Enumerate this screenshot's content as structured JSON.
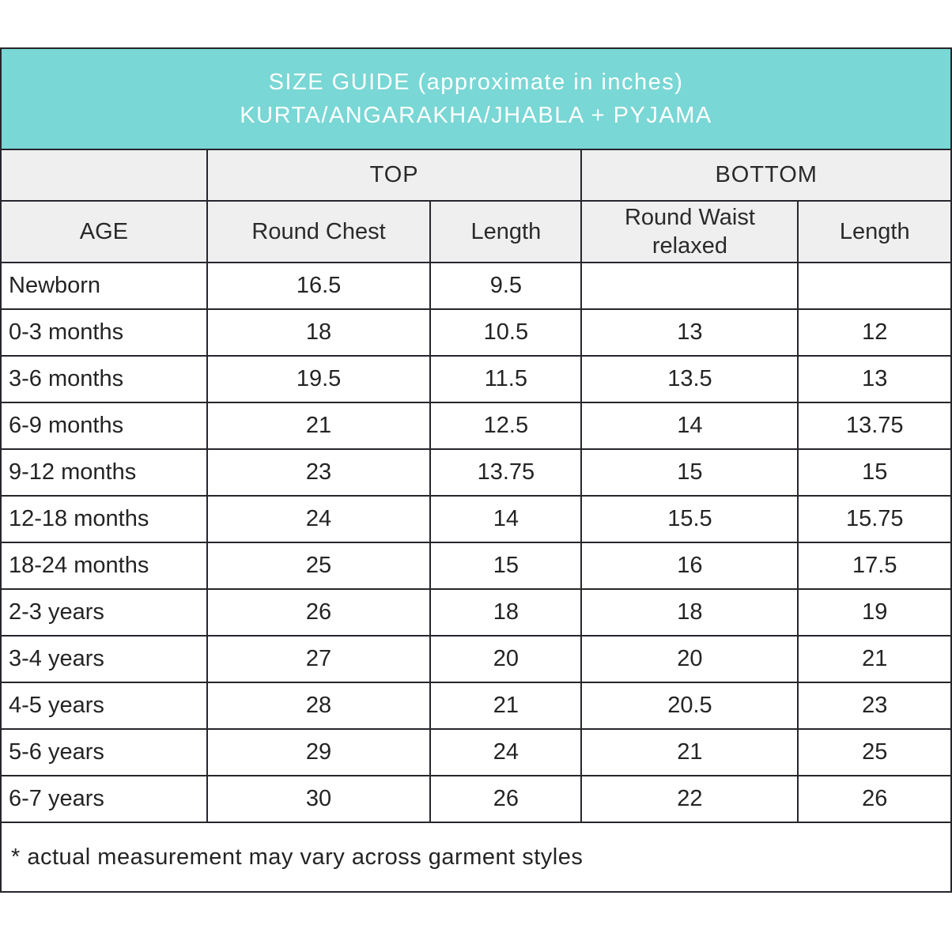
{
  "colors": {
    "banner_bg": "#79d7d5",
    "banner_text": "#ffffff",
    "subheader_bg": "#f0efef",
    "border": "#26262c",
    "text": "#242424"
  },
  "chart_data": {
    "type": "table",
    "title": "SIZE GUIDE (approximate in inches)",
    "subtitle": "KURTA/ANGARAKHA/JHABLA + PYJAMA",
    "column_groups": [
      {
        "label": "",
        "span": 1
      },
      {
        "label": "TOP",
        "span": 2
      },
      {
        "label": "BOTTOM",
        "span": 2
      }
    ],
    "columns": [
      "AGE",
      "Round Chest",
      "Length",
      "Round Waist relaxed",
      "Length"
    ],
    "rows": [
      [
        "Newborn",
        "16.5",
        "9.5",
        "",
        ""
      ],
      [
        "0-3 months",
        "18",
        "10.5",
        "13",
        "12"
      ],
      [
        "3-6 months",
        "19.5",
        "11.5",
        "13.5",
        "13"
      ],
      [
        "6-9 months",
        "21",
        "12.5",
        "14",
        "13.75"
      ],
      [
        "9-12 months",
        "23",
        "13.75",
        "15",
        "15"
      ],
      [
        "12-18 months",
        "24",
        "14",
        "15.5",
        "15.75"
      ],
      [
        "18-24 months",
        "25",
        "15",
        "16",
        "17.5"
      ],
      [
        "2-3 years",
        "26",
        "18",
        "18",
        "19"
      ],
      [
        "3-4 years",
        "27",
        "20",
        "20",
        "21"
      ],
      [
        "4-5 years",
        "28",
        "21",
        "20.5",
        "23"
      ],
      [
        "5-6 years",
        "29",
        "24",
        "21",
        "25"
      ],
      [
        "6-7 years",
        "30",
        "26",
        "22",
        "26"
      ]
    ],
    "footnote": "* actual measurement may vary across garment styles"
  }
}
